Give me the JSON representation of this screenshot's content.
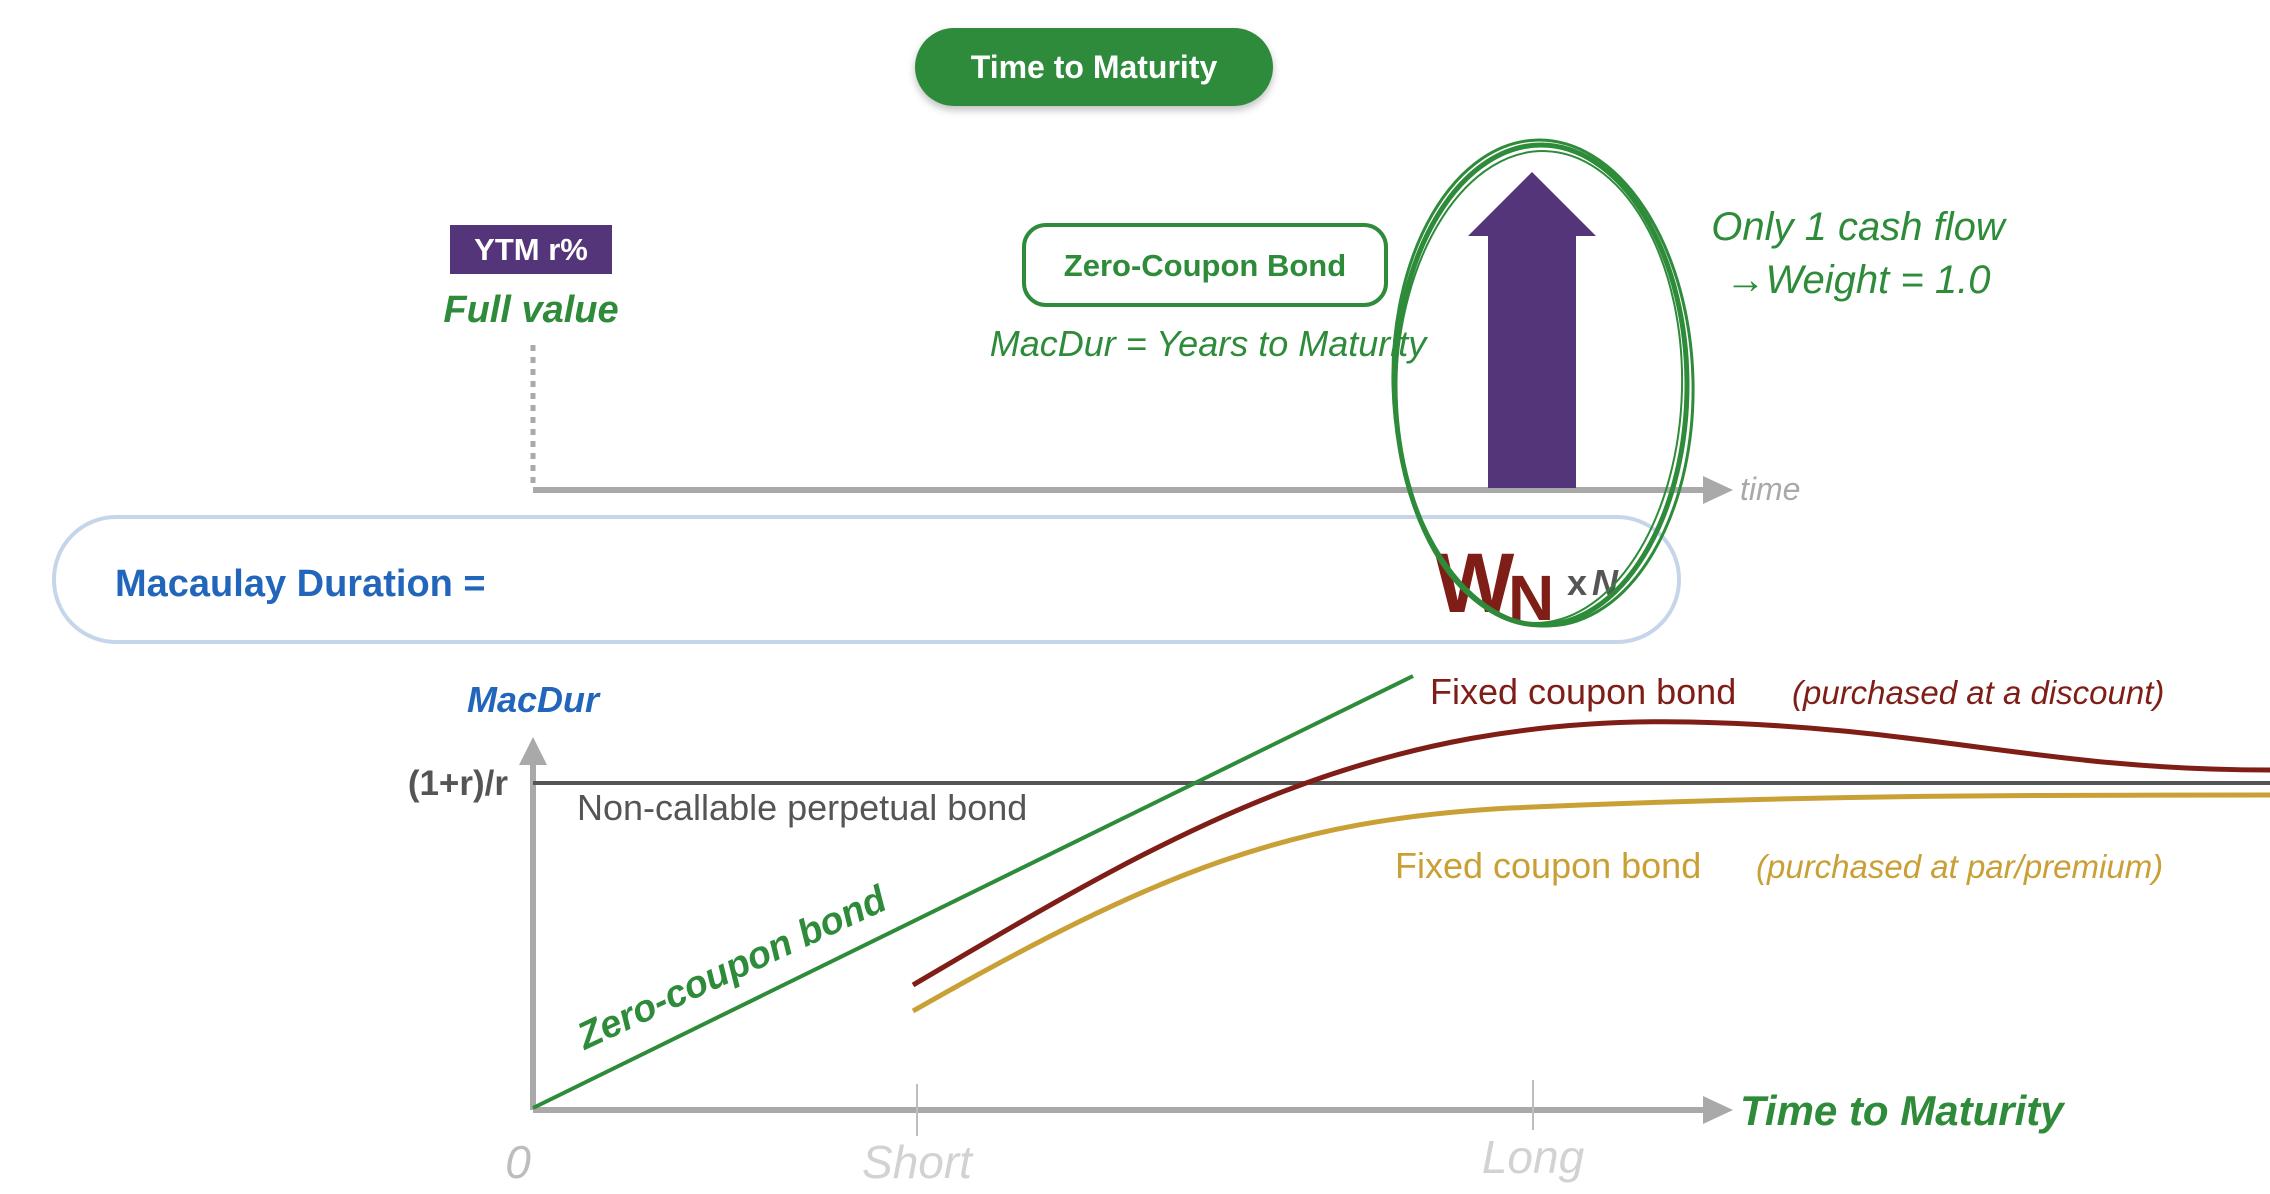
{
  "header": {
    "title": "Time to Maturity"
  },
  "cashflow": {
    "rate_badge": "YTM r%",
    "full_value": "Full value",
    "bond_box": "Zero-Coupon Bond",
    "macdur_eq": "MacDur = Years to Maturity",
    "note_line1": "Only 1 cash flow",
    "note_line2": "→Weight = 1.0",
    "axis_label": "time",
    "weight_main": "W",
    "weight_sub": "N",
    "weight_mult": "x",
    "weight_n": "N"
  },
  "formula": {
    "label": "Macaulay Duration  ="
  },
  "chart": {
    "ylabel": "MacDur",
    "y_level": "(1+r)/r",
    "perpetual": "Non-callable perpetual bond",
    "zero_label": "Zero-coupon bond",
    "discount_label": "Fixed coupon bond",
    "discount_note": "(purchased at a discount)",
    "par_label": "Fixed coupon bond",
    "par_note": "(purchased at par/premium)",
    "xlabel": "Time to Maturity",
    "origin": "0",
    "ticks": [
      "Short",
      "Long"
    ]
  },
  "colors": {
    "green": "#2e8b3a",
    "purple": "#55357a",
    "blue": "#2266bb",
    "maroon": "#7f1d17",
    "gold": "#c9a036",
    "gray": "#a9a9a9",
    "dark": "#555555"
  }
}
